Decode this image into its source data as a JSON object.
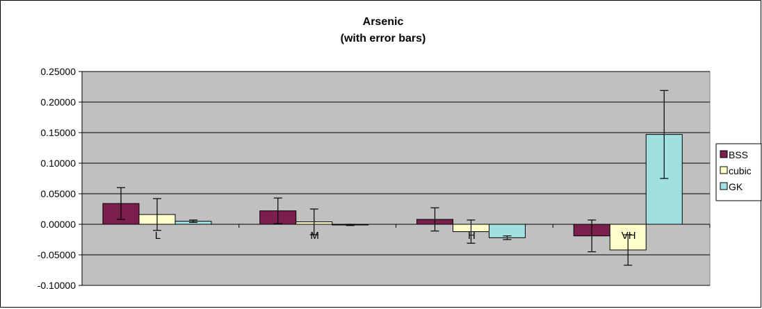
{
  "chart_data": {
    "type": "bar",
    "title": "Arsenic",
    "subtitle": "(with error bars)",
    "categories": [
      "L",
      "M",
      "H",
      "VH"
    ],
    "ylim": [
      -0.1,
      0.25
    ],
    "yticks": [
      "0.25000",
      "0.20000",
      "0.15000",
      "0.10000",
      "0.05000",
      "0.00000",
      "-0.05000",
      "-0.10000"
    ],
    "ytick_values": [
      0.25,
      0.2,
      0.15,
      0.1,
      0.05,
      0.0,
      -0.05,
      -0.1
    ],
    "grid": true,
    "legend_position": "right",
    "series": [
      {
        "name": "BSS",
        "color": "#7b1f4d",
        "values": [
          0.034,
          0.022,
          0.008,
          -0.019
        ],
        "errors": [
          0.026,
          0.021,
          0.019,
          0.026
        ]
      },
      {
        "name": "cubic",
        "color": "#ffffcc",
        "values": [
          0.016,
          0.004,
          -0.012,
          -0.042
        ],
        "errors": [
          0.026,
          0.021,
          0.019,
          0.025
        ]
      },
      {
        "name": "GK",
        "color": "#a0e0e0",
        "values": [
          0.005,
          -0.001,
          -0.022,
          0.147
        ],
        "errors": [
          0.002,
          0.001,
          0.003,
          0.072
        ]
      }
    ],
    "plot_background": "#c0c0c0"
  }
}
